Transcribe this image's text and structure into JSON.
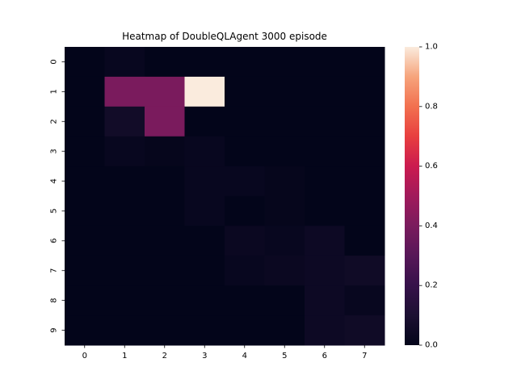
{
  "chart_data": {
    "type": "heatmap",
    "title": "Heatmap of DoubleQLAgent 3000 episode",
    "xlabel": "",
    "ylabel": "",
    "x_categories": [
      "0",
      "1",
      "2",
      "3",
      "4",
      "5",
      "6",
      "7"
    ],
    "y_categories": [
      "0",
      "1",
      "2",
      "3",
      "4",
      "5",
      "6",
      "7",
      "8",
      "9"
    ],
    "values": [
      [
        0.0,
        0.02,
        0.0,
        0.0,
        0.0,
        0.0,
        0.0,
        0.0
      ],
      [
        0.0,
        0.4,
        0.4,
        1.0,
        0.0,
        0.0,
        0.0,
        0.0
      ],
      [
        0.0,
        0.06,
        0.4,
        0.0,
        0.0,
        0.0,
        0.0,
        0.0
      ],
      [
        0.0,
        0.02,
        0.01,
        0.02,
        0.0,
        0.0,
        0.0,
        0.0
      ],
      [
        0.0,
        0.0,
        0.0,
        0.02,
        0.02,
        0.01,
        0.0,
        0.0
      ],
      [
        0.0,
        0.0,
        0.0,
        0.02,
        0.0,
        0.01,
        0.0,
        0.0
      ],
      [
        0.0,
        0.0,
        0.0,
        0.0,
        0.03,
        0.02,
        0.04,
        0.0
      ],
      [
        0.0,
        0.0,
        0.0,
        0.0,
        0.02,
        0.03,
        0.04,
        0.05
      ],
      [
        0.0,
        0.0,
        0.0,
        0.0,
        0.0,
        0.0,
        0.04,
        0.02
      ],
      [
        0.0,
        0.0,
        0.0,
        0.0,
        0.0,
        0.0,
        0.04,
        0.05
      ]
    ],
    "colorbar": {
      "min": 0.0,
      "max": 1.0,
      "ticks": [
        "0.0",
        "0.2",
        "0.4",
        "0.6",
        "0.8",
        "1.0"
      ],
      "colormap": "rocket"
    },
    "grid": false,
    "legend": "colorbar-right"
  }
}
